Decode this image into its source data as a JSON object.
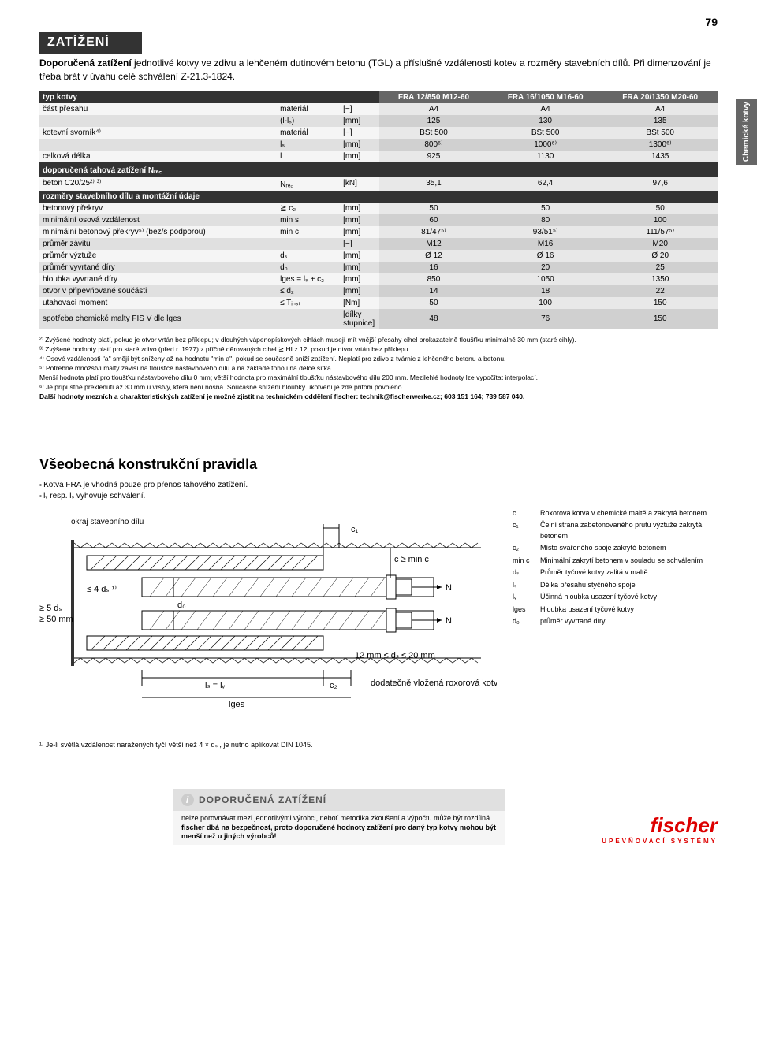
{
  "page_number": "79",
  "side_tab": "Chemické kotvy",
  "section_title": "ZATÍŽENÍ",
  "intro_bold": "Doporučená zatížení",
  "intro_text": " jednotlivé kotvy ve zdivu a lehčeném dutinovém betonu (TGL) a příslušné vzdálenosti kotev a rozměry stavebních dílů. Při dimenzování je třeba brát v úvahu celé schválení Z-21.3-1824.",
  "table": {
    "header": {
      "typ_kotvy": "typ kotvy",
      "col1": "FRA 12/850 M12-60",
      "col2": "FRA 16/1050 M16-60",
      "col3": "FRA 20/1350 M20-60"
    },
    "rows": [
      {
        "shade": "light",
        "label": "část přesahu",
        "sym": "materiál",
        "unit": "[−]",
        "v": [
          "A4",
          "A4",
          "A4"
        ]
      },
      {
        "shade": "dark",
        "label": "",
        "sym": "(l-lₛ)",
        "unit": "[mm]",
        "v": [
          "125",
          "130",
          "135"
        ]
      },
      {
        "shade": "light",
        "label": "kotevní svorník⁴⁾",
        "sym": "materiál",
        "unit": "[−]",
        "v": [
          "BSt 500",
          "BSt 500",
          "BSt 500"
        ]
      },
      {
        "shade": "dark",
        "label": "",
        "sym": "lₛ",
        "unit": "[mm]",
        "v": [
          "800⁶⁾",
          "1000⁶⁾",
          "1300⁶⁾"
        ]
      },
      {
        "shade": "light",
        "label": "celková délka",
        "sym": "l",
        "unit": "[mm]",
        "v": [
          "925",
          "1130",
          "1435"
        ]
      }
    ],
    "section1": "doporučená tahová zatížení Nᵣₑ꜀",
    "rows2": [
      {
        "shade": "light",
        "label": "beton C20/25²⁾ ³⁾",
        "sym": "Nᵣₑ꜀",
        "unit": "[kN]",
        "v": [
          "35,1",
          "62,4",
          "97,6"
        ]
      }
    ],
    "section2": "rozměry stavebního dílu a montážní údaje",
    "rows3": [
      {
        "shade": "light",
        "label": "betonový překryv",
        "sym": "≧ c₂",
        "unit": "[mm]",
        "v": [
          "50",
          "50",
          "50"
        ]
      },
      {
        "shade": "dark",
        "label": "minimální osová vzdálenost",
        "sym": "min s",
        "unit": "[mm]",
        "v": [
          "60",
          "80",
          "100"
        ]
      },
      {
        "shade": "light",
        "label": "minimální betonový překryv⁵⁾ (bez/s podporou)",
        "sym": "min c",
        "unit": "[mm]",
        "v": [
          "81/47⁵⁾",
          "93/51⁵⁾",
          "111/57⁵⁾"
        ]
      },
      {
        "shade": "dark",
        "label": "průměr závitu",
        "sym": "",
        "unit": "[−]",
        "v": [
          "M12",
          "M16",
          "M20"
        ]
      },
      {
        "shade": "light",
        "label": "průměr výztuže",
        "sym": "dₛ",
        "unit": "[mm]",
        "v": [
          "Ø 12",
          "Ø 16",
          "Ø 20"
        ]
      },
      {
        "shade": "dark",
        "label": "průměr vyvrtané díry",
        "sym": "d₀",
        "unit": "[mm]",
        "v": [
          "16",
          "20",
          "25"
        ]
      },
      {
        "shade": "light",
        "label": "hloubka vyvrtané díry",
        "sym": "lges = lₛ + c₂",
        "unit": "[mm]",
        "v": [
          "850",
          "1050",
          "1350"
        ]
      },
      {
        "shade": "dark",
        "label": "otvor v připevňované součásti",
        "sym": "≤ d₂",
        "unit": "[mm]",
        "v": [
          "14",
          "18",
          "22"
        ]
      },
      {
        "shade": "light",
        "label": "utahovací moment",
        "sym": "≤ Tᵢₙₛₜ",
        "unit": "[Nm]",
        "v": [
          "50",
          "100",
          "150"
        ]
      },
      {
        "shade": "dark",
        "label": "spotřeba chemické malty FIS V dle lges",
        "sym": "",
        "unit": "[dílky stupnice]",
        "v": [
          "48",
          "76",
          "150"
        ]
      }
    ]
  },
  "footnotes": [
    "²⁾ Zvýšené hodnoty platí, pokud je otvor vrtán bez příklepu; v dlouhých vápenopískových cihlách musejí mít vnější přesahy cihel prokazatelně tloušťku minimálně 30 mm (staré cihly).",
    "³⁾ Zvýšené hodnoty platí pro staré zdivo (před r. 1977) z příčně děrovaných cihel ≧ HLz 12, pokud je otvor vrtán bez příklepu.",
    "⁴⁾ Osové vzdálenosti \"a\" smějí být sníženy až na hodnotu \"min a\", pokud se současně sníží zatížení. Neplatí pro zdivo z tvárnic z lehčeného betonu a betonu.",
    "⁵⁾ Potřebné množství malty závisí na tloušťce nástavbového dílu a na základě toho i na délce sítka.",
    "Menší hodnota platí pro tloušťku nástavbového dílu 0 mm; větší hodnota pro maximální tloušťku nástavbového dílu 200 mm. Mezilehlé hodnoty lze vypočítat interpolací.",
    "⁶⁾ Je přípustné překlenutí až 30 mm u vrstvy, která není nosná. Současné snížení hloubky ukotvení je zde přitom povoleno."
  ],
  "footnote_bold": "Další hodnoty mezních a charakteristických zatížení je možné zjistit na technickém oddělení fischer: technik@fischerwerke.cz; 603 151 164; 739 587 040.",
  "rules_title": "Všeobecná konstrukční pravidla",
  "bullets": [
    "Kotva FRA je vhodná pouze pro přenos tahového zatížení.",
    "lᵥ resp. lₛ vyhovuje schválení."
  ],
  "diagram": {
    "edge_label": "okraj stavebního dílu",
    "l1": "≤ 4 dₛ ¹⁾",
    "l2": "≥ 5 dₛ",
    "l3": "≥ 50 mm",
    "d0": "d₀",
    "ls_lv": "lₛ = lᵥ",
    "lges": "lges",
    "c1": "c₁",
    "c2": "c₂",
    "cmin": "c ≥ min c",
    "n": "N",
    "ds_range": "12 mm ≤ dₛ ≤  20 mm",
    "insert": "dodatečně vložená roxorová kotva"
  },
  "legend": [
    {
      "s": "c",
      "t": "Roxorová kotva v chemické maltě a zakrytá betonem"
    },
    {
      "s": "c₁",
      "t": "Čelní strana zabetonovaného prutu výztuže zakrytá betonem"
    },
    {
      "s": "c₂",
      "t": "Místo svařeného spoje zakryté betonem"
    },
    {
      "s": "min c",
      "t": "Minimální zakrytí betonem v souladu se schválením"
    },
    {
      "s": "dₛ",
      "t": "Průměr tyčové kotvy zalitá v maltě"
    },
    {
      "s": "lₛ",
      "t": "Délka přesahu styčného spoje"
    },
    {
      "s": "lᵥ",
      "t": "Účinná hloubka usazení tyčové kotvy"
    },
    {
      "s": "lges",
      "t": "Hloubka usazení tyčové kotvy"
    },
    {
      "s": "d₀",
      "t": "průměr vyvrtané díry"
    }
  ],
  "diagram_footnote": "¹⁾ Je-li světlá vzdálenost naražených tyčí větší než 4 × dₛ , je nutno aplikovat DIN 1045.",
  "rec_title": "DOPORUČENÁ ZATÍŽENÍ",
  "rec_body": "nelze porovnávat mezi jednotlivými výrobci, neboť metodika zkoušení a výpočtu může být rozdílná.",
  "rec_body_bold": " fischer dbá na bezpečnost, proto doporučené hodnoty zatížení pro daný typ kotvy mohou být menší než u jiných výrobců!",
  "logo": "fischer",
  "logo_sub": "UPEVŇOVACÍ SYSTÉMY"
}
